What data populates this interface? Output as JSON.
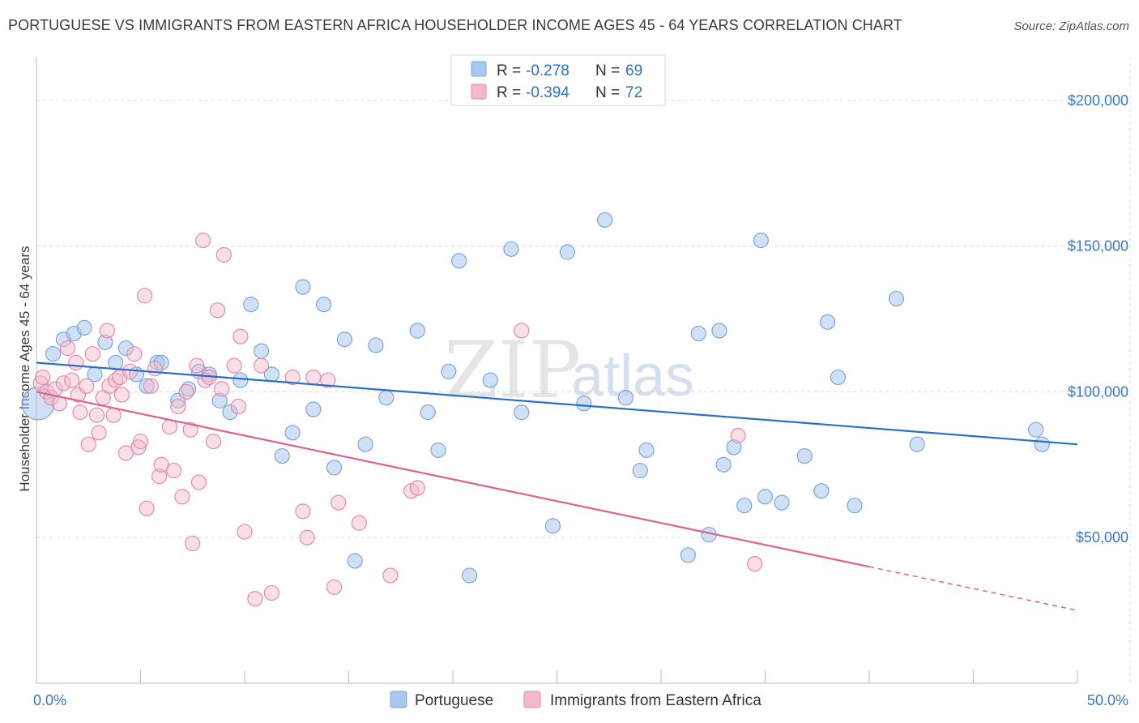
{
  "title": "PORTUGUESE VS IMMIGRANTS FROM EASTERN AFRICA HOUSEHOLDER INCOME AGES 45 - 64 YEARS CORRELATION CHART",
  "source": "Source: ZipAtlas.com",
  "watermark": {
    "zip": "ZIP",
    "atlas": "atlas"
  },
  "legend": {
    "r_label": "R =",
    "n_label": "N =",
    "rows": [
      {
        "r": "-0.278",
        "n": "69"
      },
      {
        "r": "-0.394",
        "n": "72"
      }
    ]
  },
  "bottom_legend": [
    "Portuguese",
    "Immigrants from Eastern Africa"
  ],
  "chart_data": {
    "type": "scatter",
    "xlabel": "",
    "ylabel": "Householder Income Ages 45 - 64 years",
    "xlim": [
      0,
      50
    ],
    "ylim": [
      0,
      215000
    ],
    "x_tick_labels": [
      "0.0%",
      "50.0%"
    ],
    "y_ticks": [
      50000,
      100000,
      150000,
      200000
    ],
    "y_tick_labels": [
      "$50,000",
      "$100,000",
      "$150,000",
      "$200,000"
    ],
    "grid": true,
    "legend_position": "top-center",
    "colors": {
      "Portuguese": {
        "fill": "#a9c8ee",
        "stroke": "#7aa6dc",
        "line": "#2c6fcb"
      },
      "Immigrants from Eastern Africa": {
        "fill": "#f5b8cb",
        "stroke": "#e58ba8",
        "line": "#e0608e"
      }
    },
    "series": [
      {
        "name": "Portuguese",
        "trend": {
          "x0": 0,
          "y0": 110000,
          "x1": 50,
          "y1": 82000
        },
        "points": [
          [
            0.0,
            96000
          ],
          [
            0.8,
            113000
          ],
          [
            1.3,
            118000
          ],
          [
            1.8,
            120000
          ],
          [
            2.3,
            122000
          ],
          [
            2.8,
            106000
          ],
          [
            3.3,
            117000
          ],
          [
            3.8,
            110000
          ],
          [
            4.3,
            115000
          ],
          [
            4.8,
            106000
          ],
          [
            5.3,
            102000
          ],
          [
            5.8,
            110000
          ],
          [
            6.0,
            110000
          ],
          [
            6.8,
            97000
          ],
          [
            7.3,
            101000
          ],
          [
            7.8,
            107000
          ],
          [
            8.3,
            106000
          ],
          [
            8.8,
            97000
          ],
          [
            9.3,
            93000
          ],
          [
            9.8,
            104000
          ],
          [
            10.3,
            130000
          ],
          [
            10.8,
            114000
          ],
          [
            11.3,
            106000
          ],
          [
            11.8,
            78000
          ],
          [
            12.3,
            86000
          ],
          [
            12.8,
            136000
          ],
          [
            13.3,
            94000
          ],
          [
            13.8,
            130000
          ],
          [
            14.3,
            74000
          ],
          [
            14.8,
            118000
          ],
          [
            15.3,
            42000
          ],
          [
            15.8,
            82000
          ],
          [
            16.3,
            116000
          ],
          [
            16.8,
            98000
          ],
          [
            18.3,
            121000
          ],
          [
            18.8,
            93000
          ],
          [
            19.3,
            80000
          ],
          [
            19.8,
            107000
          ],
          [
            20.3,
            145000
          ],
          [
            20.8,
            37000
          ],
          [
            21.8,
            104000
          ],
          [
            22.8,
            149000
          ],
          [
            23.3,
            93000
          ],
          [
            24.8,
            54000
          ],
          [
            25.5,
            148000
          ],
          [
            26.3,
            96000
          ],
          [
            27.3,
            159000
          ],
          [
            28.3,
            98000
          ],
          [
            29.0,
            73000
          ],
          [
            29.3,
            80000
          ],
          [
            31.3,
            44000
          ],
          [
            31.8,
            120000
          ],
          [
            32.3,
            51000
          ],
          [
            32.8,
            121000
          ],
          [
            33.0,
            75000
          ],
          [
            33.5,
            81000
          ],
          [
            34.0,
            61000
          ],
          [
            34.8,
            152000
          ],
          [
            35.0,
            64000
          ],
          [
            35.8,
            62000
          ],
          [
            36.9,
            78000
          ],
          [
            37.7,
            66000
          ],
          [
            38.0,
            124000
          ],
          [
            38.5,
            105000
          ],
          [
            39.3,
            61000
          ],
          [
            41.3,
            132000
          ],
          [
            42.3,
            82000
          ],
          [
            48.0,
            87000
          ],
          [
            48.3,
            82000
          ]
        ]
      },
      {
        "name": "Immigrants from Eastern Africa",
        "trend": {
          "x0": 0,
          "y0": 100000,
          "x1": 40,
          "y1": 40000,
          "x_dash_end": 50,
          "y_dash_end": 25000
        },
        "points": [
          [
            0.2,
            103000
          ],
          [
            0.3,
            105000
          ],
          [
            0.5,
            100000
          ],
          [
            0.7,
            98000
          ],
          [
            0.9,
            101000
          ],
          [
            1.1,
            96000
          ],
          [
            1.3,
            103000
          ],
          [
            1.5,
            115000
          ],
          [
            1.7,
            104000
          ],
          [
            1.9,
            110000
          ],
          [
            2.0,
            99000
          ],
          [
            2.1,
            93000
          ],
          [
            2.4,
            102000
          ],
          [
            2.5,
            82000
          ],
          [
            2.7,
            113000
          ],
          [
            2.9,
            92000
          ],
          [
            3.0,
            86000
          ],
          [
            3.2,
            98000
          ],
          [
            3.4,
            121000
          ],
          [
            3.5,
            102000
          ],
          [
            3.7,
            92000
          ],
          [
            3.8,
            104000
          ],
          [
            4.0,
            105000
          ],
          [
            4.1,
            99000
          ],
          [
            4.3,
            79000
          ],
          [
            4.5,
            107000
          ],
          [
            4.7,
            113000
          ],
          [
            4.9,
            81000
          ],
          [
            5.0,
            83000
          ],
          [
            5.2,
            133000
          ],
          [
            5.3,
            60000
          ],
          [
            5.5,
            102000
          ],
          [
            5.7,
            108000
          ],
          [
            5.9,
            71000
          ],
          [
            6.0,
            75000
          ],
          [
            6.4,
            88000
          ],
          [
            6.6,
            73000
          ],
          [
            6.8,
            95000
          ],
          [
            7.0,
            64000
          ],
          [
            7.2,
            100000
          ],
          [
            7.4,
            87000
          ],
          [
            7.5,
            48000
          ],
          [
            7.7,
            109000
          ],
          [
            7.8,
            69000
          ],
          [
            8.0,
            152000
          ],
          [
            8.1,
            104000
          ],
          [
            8.3,
            105000
          ],
          [
            8.5,
            83000
          ],
          [
            8.7,
            128000
          ],
          [
            8.9,
            101000
          ],
          [
            9.0,
            147000
          ],
          [
            9.5,
            109000
          ],
          [
            9.7,
            95000
          ],
          [
            9.8,
            119000
          ],
          [
            10.0,
            52000
          ],
          [
            10.5,
            29000
          ],
          [
            10.8,
            109000
          ],
          [
            11.3,
            31000
          ],
          [
            12.3,
            105000
          ],
          [
            12.8,
            59000
          ],
          [
            13.0,
            50000
          ],
          [
            13.3,
            105000
          ],
          [
            14.0,
            104000
          ],
          [
            14.3,
            33000
          ],
          [
            14.5,
            62000
          ],
          [
            15.5,
            55000
          ],
          [
            17.0,
            37000
          ],
          [
            18.0,
            66000
          ],
          [
            18.3,
            67000
          ],
          [
            23.3,
            121000
          ],
          [
            33.7,
            85000
          ],
          [
            34.5,
            41000
          ]
        ]
      }
    ]
  }
}
